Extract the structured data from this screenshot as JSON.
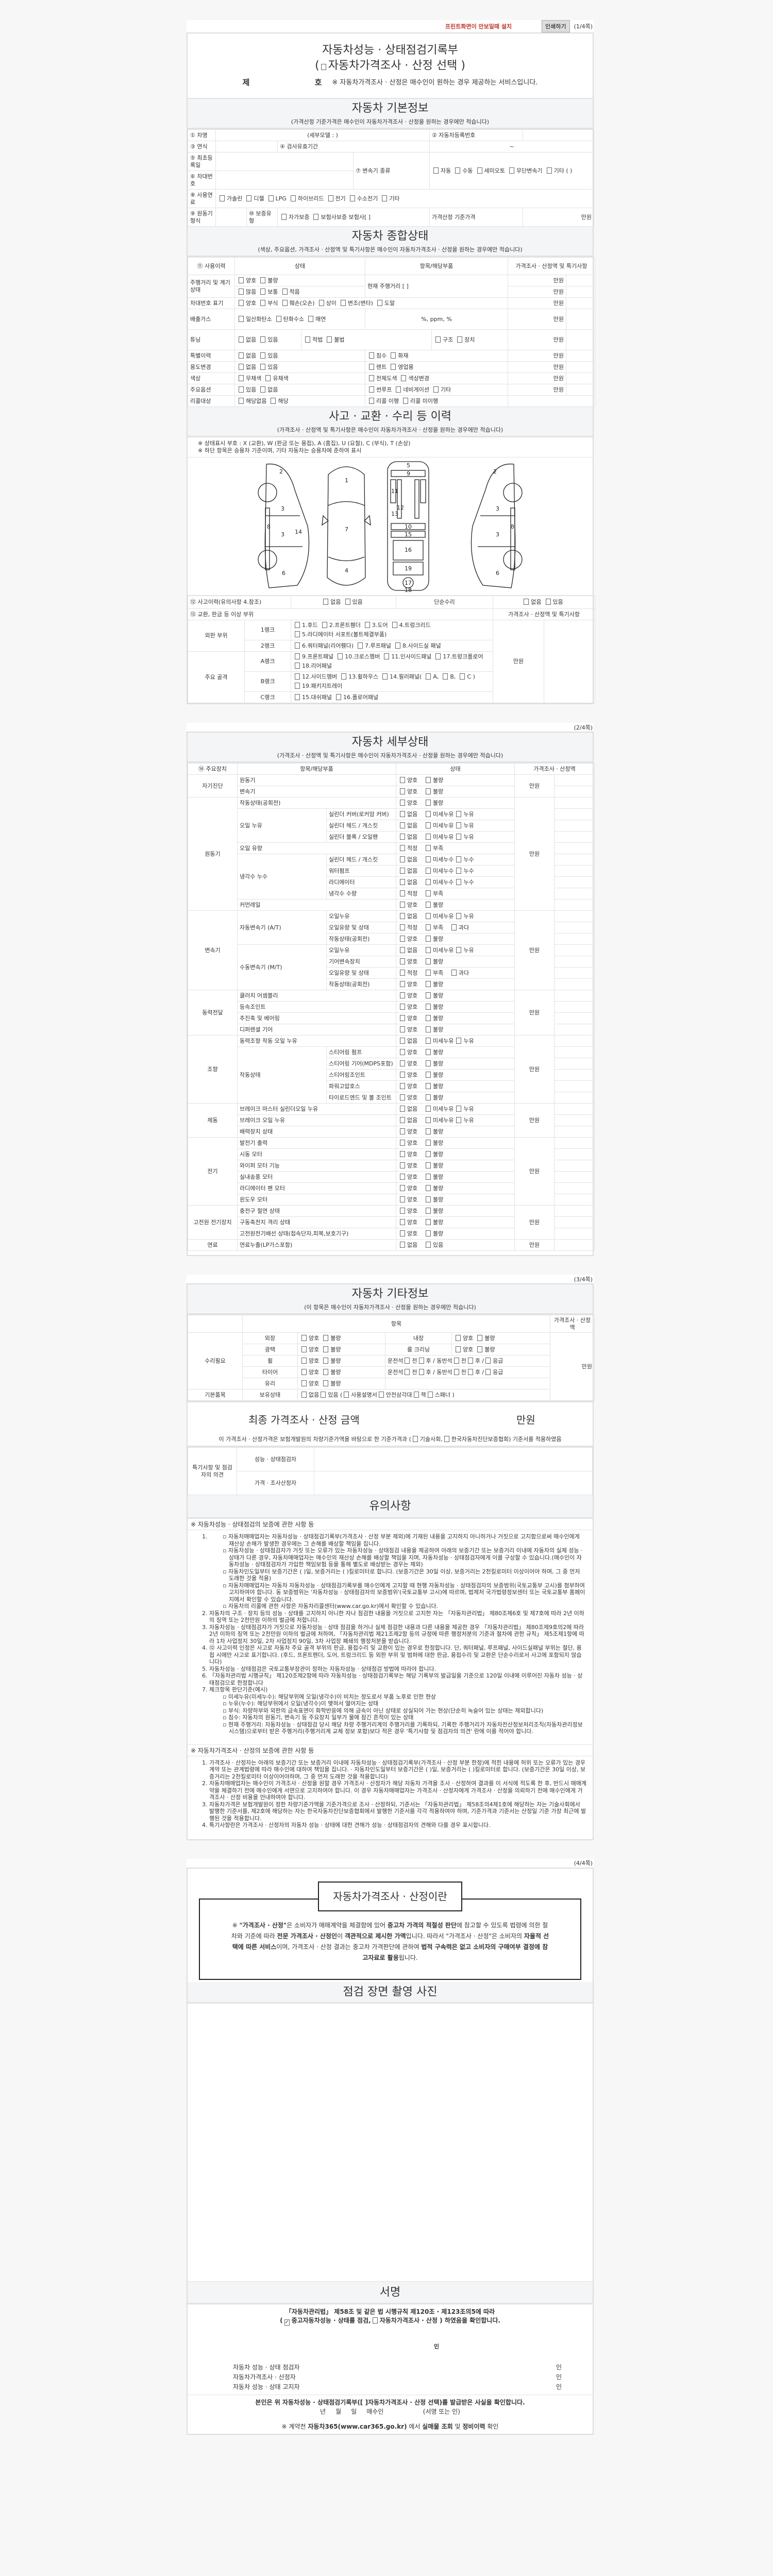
{
  "top": {
    "notice": "프린트화면이 안보일때 설치",
    "print_button": "인쇄하기",
    "page_label": "(1/4쪽)"
  },
  "title": {
    "line1": "자동차성능 · 상태점검기록부",
    "open": "(",
    "line2": "자동차가격조사 · 산정 선택",
    "close": ")",
    "number_prefix": "제",
    "number_suffix": "호",
    "note": "※ 자동차가격조사 · 산정은 매수인이 원하는 경우 제공하는 서비스입니다."
  },
  "option_sets": {
    "gb": [
      "양호",
      "불량"
    ],
    "leak_oil": [
      "없음",
      "미세누유",
      "누유"
    ],
    "leak_water": [
      "없음",
      "미세누수",
      "누수"
    ],
    "level": [
      "적정",
      "부족"
    ],
    "level3": [
      "적정",
      "부족",
      "과다"
    ],
    "yn": [
      "없음",
      "있음"
    ]
  },
  "basic": {
    "header": "자동차 기본정보",
    "sub": "(가격산정 기준가격은 매수인이 자동차가격조사 · 산정을 원하는 경우에만 적습니다)",
    "name_label": "① 차명",
    "detail_model": "(세부모델 :                    )",
    "reg_label": "② 자동차등록번호",
    "year_label": "③ 연식",
    "inspect_label": "④ 검사유효기간",
    "inspect_value": "~",
    "first_reg_label": "⑤ 최초등록일",
    "vin_label": "⑥ 차대번호",
    "transmission_label": "⑦ 변속기 종류",
    "transmission": [
      "자동",
      "수동",
      "세미오토",
      "무단변속기",
      "기타 (            )"
    ],
    "fuel_label": "⑧ 사용연료",
    "fuel": [
      "가솔린",
      "디젤",
      "LPG",
      "하이브리드",
      "전기",
      "수소전기",
      "기타"
    ],
    "engine_label": "⑨ 원동기형식",
    "warranty_label": "⑩ 보증유형",
    "warranty": [
      "자가보증",
      "보험사보증 보험사[          ]"
    ],
    "base_price_label": "가격산정 기준가격",
    "unit": "만원"
  },
  "summary": {
    "header": "자동차 종합상태",
    "sub": "(색상, 주요옵션, 가격조사 · 산정액 및 특기사항은 매수인이 자동차가격조사 · 산정을 원하는 경우에만 적습니다)",
    "col_history": "⑪ 사용이력",
    "col_status": "상태",
    "col_item": "항목/해당부품",
    "col_price": "가격조사 · 산정액 및 특기사항",
    "unit": "만원",
    "mileage_label": "주행거리 및 계기상태",
    "mileage_opts1": [
      "양호",
      "불량"
    ],
    "mileage_opts2": [
      "많음",
      "보통",
      "적음"
    ],
    "mileage_item": "현재 주행거리 [                    ]",
    "vin_label": "차대번호 표기",
    "vin_opts": [
      "양호",
      "부식",
      "훼손(오손)",
      "상이",
      "변조(변타)",
      "도말"
    ],
    "emission_label": "배출가스",
    "emission_opts": [
      "일산화탄소",
      "탄화수소",
      "매연"
    ],
    "emission_item": "%,        ppm,        %",
    "tuning_label": "튜닝",
    "tuning_opts": [
      "없음",
      "있음"
    ],
    "tuning_legal": [
      "적법",
      "불법"
    ],
    "tuning_kind": [
      "구조",
      "장치"
    ],
    "special_label": "특별이력",
    "special_opts": [
      "없음",
      "있음"
    ],
    "special_item": [
      "침수",
      "화재"
    ],
    "usage_label": "용도변경",
    "usage_opts": [
      "없음",
      "있음"
    ],
    "usage_item": [
      "렌트",
      "영업용"
    ],
    "color_label": "색상",
    "color_opts": [
      "무채색",
      "유채색"
    ],
    "color_item": [
      "전체도색",
      "색상변경"
    ],
    "option_label": "주요옵션",
    "option_opts": [
      "있음",
      "없음"
    ],
    "option_item": [
      "썬루프",
      "네비게이션",
      "기타"
    ],
    "recall_label": "리콜대상",
    "recall_opts": [
      "해당없음",
      "해당"
    ],
    "recall_item": [
      "리콜 이행",
      "리콜 미이행"
    ]
  },
  "accident": {
    "header": "사고 · 교환 · 수리 등 이력",
    "sub": "(가격조사 · 산정액 및 특기사항은 매수인이 자동차가격조사 · 산정을 원하는 경우에만 적습니다)",
    "note1": "※ 상태표시 부호 : X (교환), W (판금 또는 용접), A (흠집), U (요철), C (부식), T (손상)",
    "note2": "※ 하단 항목은 승용차 기준이며, 기타 자동차는 승용차에 준하여 표시",
    "diagram_labels": [
      "1",
      "2",
      "3",
      "4",
      "5",
      "6",
      "7",
      "8",
      "9",
      "10",
      "11",
      "12",
      "13",
      "14",
      "15",
      "16",
      "17",
      "18",
      "19"
    ],
    "history_label": "⑫ 사고이력(유의사항 4.참조)",
    "history_opts": [
      "없음",
      "있음"
    ],
    "simple_label": "단순수리",
    "simple_opts": [
      "없음",
      "있음"
    ],
    "parts_label": "⑬ 교환, 판금 등 이상 부위",
    "price_label": "가격조사 · 산정액 및 특기사항",
    "unit": "만원",
    "outer_label": "외판 부위",
    "frame_label": "주요 골격",
    "ranks": [
      {
        "rank": "1랭크",
        "parts": [
          "1.후드",
          "2.프론트휀더",
          "3.도어",
          "4.트렁크리드",
          "5.라디에이터 서포트(볼트체결부품)"
        ]
      },
      {
        "rank": "2랭크",
        "parts": [
          "6.쿼터패널(리어휀다)",
          "7.루프패널",
          "8.사이드실 패널"
        ]
      },
      {
        "rank": "A랭크",
        "parts": [
          "9.프론트패널",
          "10.크로스멤버",
          "11.인사이드패널",
          "17.트렁크플로어",
          "18.리어패널"
        ]
      },
      {
        "rank": "B랭크",
        "parts": [
          "12.사이드멤버",
          "13.휠하우스",
          "14.필러패널(",
          "A,",
          "B,",
          "C )",
          "19.패키지트레이"
        ]
      },
      {
        "rank": "C랭크",
        "parts": [
          "15.대쉬패널",
          "16.플로어패널"
        ]
      }
    ]
  },
  "detail": {
    "page_label": "(2/4쪽)",
    "header": "자동차 세부상태",
    "sub": "(가격조사 · 산정액 및 특기사항은 매수인이 자동차가격조사 · 산정을 원하는 경우에만 적습니다)",
    "col_device": "⑭ 주요장치",
    "col_item": "항목/해당부품",
    "col_status": "상태",
    "col_price": "가격조사 · 산정액",
    "unit": "만원",
    "groups": [
      {
        "name": "자기진단",
        "items": [
          {
            "label": "원동기",
            "o": "gb"
          },
          {
            "label": "변속기",
            "o": "gb"
          }
        ]
      },
      {
        "name": "원동기",
        "items": [
          {
            "label": "작동상태(공회전)",
            "o": "gb"
          },
          {
            "label": "오일 누유",
            "subs": [
              {
                "label": "실린더 커버(로커암 커버)",
                "o": "leak_oil"
              },
              {
                "label": "실린더 헤드 / 개스킷",
                "o": "leak_oil"
              },
              {
                "label": "실린더 블록 / 오일팬",
                "o": "leak_oil"
              }
            ]
          },
          {
            "label": "오일 유량",
            "o": "level"
          },
          {
            "label": "냉각수 누수",
            "subs": [
              {
                "label": "실린더 헤드 / 개스킷",
                "o": "leak_water"
              },
              {
                "label": "워터펌프",
                "o": "leak_water"
              },
              {
                "label": "라디에이터",
                "o": "leak_water"
              },
              {
                "label": "냉각수 수량",
                "o": "level"
              }
            ]
          },
          {
            "label": "커먼레일",
            "o": "gb"
          }
        ]
      },
      {
        "name": "변속기",
        "items": [
          {
            "label": "자동변속기 (A/T)",
            "subs": [
              {
                "label": "오일누유",
                "o": "leak_oil"
              },
              {
                "label": "오일유량 및 상태",
                "o": "level3"
              },
              {
                "label": "작동상태(공회전)",
                "o": "gb"
              }
            ]
          },
          {
            "label": "수동변속기 (M/T)",
            "subs": [
              {
                "label": "오일누유",
                "o": "leak_oil"
              },
              {
                "label": "기어변속장치",
                "o": "gb"
              },
              {
                "label": "오일유량 및 상태",
                "o": "level3"
              },
              {
                "label": "작동상태(공회전)",
                "o": "gb"
              }
            ]
          }
        ]
      },
      {
        "name": "동력전달",
        "items": [
          {
            "label": "클러치 어셈블리",
            "o": "gb"
          },
          {
            "label": "등속조인트",
            "o": "gb"
          },
          {
            "label": "추진축 및 베어링",
            "o": "gb"
          },
          {
            "label": "디퍼렌셜 기어",
            "o": "gb"
          }
        ]
      },
      {
        "name": "조향",
        "items": [
          {
            "label": "동력조향 작동 오일 누유",
            "o": "leak_oil"
          },
          {
            "label": "작동상태",
            "subs": [
              {
                "label": "스티어링 펌프",
                "o": "gb"
              },
              {
                "label": "스티어링 기어(MDPS포함)",
                "o": "gb"
              },
              {
                "label": "스티어링조인트",
                "o": "gb"
              },
              {
                "label": "파워고압호스",
                "o": "gb"
              },
              {
                "label": "타이로드엔드 및 볼 조인트",
                "o": "gb"
              }
            ]
          }
        ]
      },
      {
        "name": "제동",
        "items": [
          {
            "label": "브레이크 마스터 실린더오일 누유",
            "o": "leak_oil"
          },
          {
            "label": "브레이크 오일 누유",
            "o": "leak_oil"
          },
          {
            "label": "배력장치 상태",
            "o": "gb"
          }
        ]
      },
      {
        "name": "전기",
        "items": [
          {
            "label": "발전기 출력",
            "o": "gb"
          },
          {
            "label": "시동 모터",
            "o": "gb"
          },
          {
            "label": "와이퍼 모터 기능",
            "o": "gb"
          },
          {
            "label": "실내송풍 모터",
            "o": "gb"
          },
          {
            "label": "라디에이터 팬 모터",
            "o": "gb"
          },
          {
            "label": "윈도우 모터",
            "o": "gb"
          }
        ]
      },
      {
        "name": "고전원 전기장치",
        "items": [
          {
            "label": "충전구 절연 상태",
            "o": "gb"
          },
          {
            "label": "구동축전지 격리 상태",
            "o": "gb"
          },
          {
            "label": "고전원전기배선 상태(접속단자,피복,보호기구)",
            "o": "gb"
          }
        ]
      },
      {
        "name": "연료",
        "items": [
          {
            "label": "연료누출(LP가스포함)",
            "o": "yn"
          }
        ]
      }
    ]
  },
  "other": {
    "page_label": "(3/4쪽)",
    "header": "자동차 기타정보",
    "sub": "(이 항목은 매수인이 자동차가격조사 · 산정을 원하는 경우에만 적습니다)",
    "col_item": "항목",
    "col_price": "가격조사 · 산정액",
    "unit": "만원",
    "repair_label": "수리필요",
    "exterior": "외장",
    "interior": "내장",
    "gloss": "광택",
    "room": "룸 크리닝",
    "wheel": "휠",
    "tire": "타이어",
    "glass": "유리",
    "position": [
      {
        "label": "운전석"
      },
      {
        "check": true,
        "label": "전"
      },
      {
        "check": true,
        "label": "후 / 동반석"
      },
      {
        "check": true,
        "label": "전"
      },
      {
        "check": true,
        "label": "후 /"
      },
      {
        "check": true,
        "label": "응급"
      }
    ],
    "basic_items_label": "기본품목",
    "possession_label": "보유상태",
    "possession": [
      {
        "check": true,
        "label": "없음"
      },
      {
        "check": true,
        "label": "있음 ("
      },
      {
        "check": true,
        "label": "사용설명서"
      },
      {
        "check": true,
        "label": "안전삼각대"
      },
      {
        "check": true,
        "label": "잭"
      },
      {
        "check": true,
        "label": "스패너 )"
      }
    ],
    "final_label": "최종 가격조사 · 산정 금액",
    "final_unit": "만원",
    "basis": [
      {
        "label": "이 가격조사 · 산정가격은 보험개발원의 차량기준가액을 바탕으로 한 기준가격과 ("
      },
      {
        "check": true,
        "label": "기술사회,"
      },
      {
        "check": true,
        "label": "한국자동차진단보증협회) 기준서를 적용하였음"
      }
    ],
    "opinion_label": "특기사항 및 점검자의 의견",
    "inspector": "성능 · 상태점검자",
    "appraiser": "가격 · 조사산정자"
  },
  "notes": {
    "header": "유의사항",
    "sub1": "※ 자동차성능 · 상태점검의 보증에 관한 사항 등",
    "n1_bullets": [
      "자동차매매업자는 자동차성능 · 상태점검기록부(가격조사 · 산정 부분 제외)에 기재된 내용을 고지하지 아니하거나 거짓으로 고지함으로써 매수인에게 재산상 손해가 발생한 경우에는 그 손해를 배상할 책임을 집니다.",
      "자동차성능 · 상태점검자가 거짓 또는 오류가 있는 자동차성능 · 상태점검 내용을 제공하여 아래의 보증기간 또는 보증거리 이내에 자동차의 실제 성능 · 상태가 다른 경우, 자동차매매업자는 매수인의 재산상 손해를 배상할 책임을 지며, 자동차성능 · 상태점검자에게 이를 구상할 수 있습니다.(매수인이 자동차성능 · 상태점검자가 가입한 책임보험 등을 통해 별도로 배상받는 경우는 제외)",
      "자동차인도일부터 보증기간은 (      )일, 보증거리는 (      )킬로미터로 합니다. (보증기간은 30일 이상, 보증거리는 2천킬로미터 이상이어야 하며, 그 중 먼저 도래한 것을 적용)",
      "자동차매매업자는 자동차 자동차성능 · 상태점검기록부를 매수인에게 고지할 때 현행 자동차성능 · 상태점검자의 보증범위(국토교통부 고시)를 첨부하여 고지하여야 합니다. 동 보증범위는 '자동차성능 · 상태점검자의 보증범위'(국토교통부 고시)에 따르며, 법제처 국가법령정보센터 또는 국토교통부 홈페이지에서 확인할 수 있습니다.",
      "자동차의 리콜에 관한 사항은 자동차리콜센터(www.car.go.kr)에서 확인할 수 있습니다."
    ],
    "n2": "자동차의 구조 · 장치 등의 성능 · 상태를 고지하지 아니한 자나 점검한 내용을 거짓으로 고지한 자는 「자동차관리법」 제80조제6호 및 제7호에 따라 2년 이하의 징역 또는 2천만원 이하의 벌금에 처합니다.",
    "n3": "자동차성능 · 상태점검자가 거짓으로 자동차성능 · 상태 점검을 하거나 실제 점검한 내용과 다른 내용을 제공한 경우 「자동차관리법」 제80조제9호의2에 따라 2년 이하의 징역 또는 2천만원 이하의 벌금에 처하며, 「자동차관리법 제21조제2항 등의 규정에 따른 행정처분의 기준과 절차에 관한 규칙」 제5조제1항에 따라 1차 사업정지 30일, 2차 사업정지 90일, 3차 사업장 폐쇄의 행정처분을 받습니다.",
    "n4": "⑫ 사고이력 인정은 사고로 자동차 주요 골격 부위의 판금, 용접수리 및 교환이 있는 경우로 한정합니다. 단, 쿼터패널, 루프패널, 사이드실패널 부위는 절단, 용접 시에만 사고로 표기합니다. (후드, 프론트펜더, 도어, 트렁크리드 등 외판 부위 및 범퍼에 대한 판금, 용접수리 및 교환은 단순수리로서 사고에 포함되지 않습니다)",
    "n5": "자동차성능 · 상태점검은 국토교통부장관이 정하는 자동차성능 · 상태점검 방법에 따라야 합니다.",
    "n6": "「자동차관리법 시행규칙」 제120조제2항에 따라 자동차성능 · 상태점검기록부는 해당 기록부의 발급일을 기준으로 120일 이내에 이루어진 자동차 성능 · 상태점검으로 한정합니다",
    "n7": "체크항목 판단기준(예시)",
    "n7_bullets": [
      "미세누유(미세누수): 해당부위에 오일(냉각수)이 비치는 정도로서 부품 노후로 인한 현상",
      "누유(누수): 해당부위에서 오일(냉각수)이 맺혀서 떨어지는 상태",
      "부식: 차량하부와 외판의 금속표면이 화학반응에 의해 금속이 아닌 상태로 상실되어 가는 현상(단순히 녹슬어 있는 상태는 제외합니다)",
      "침수: 자동차의 원동기, 변속기 등 주요장치 일부가 물에 잠긴 흔적이 있는 상태",
      "현재 주행거리: 자동차성능 · 상태점검 당시 해당 차량 주행거리계의 주행거리를 기록하되, 기록한 주행거리가 자동차전산정보처리조직(자동차관리정보시스템)으로부터 받은 주행거리(주행거리계 교체 정보 포함)보다 적은 경우 '특기사항 및 점검자의 의견' 란에 이를 적어야 합니다."
    ],
    "sub2": "※ 자동차가격조사 · 산정의 보증에 관한 사항 등",
    "p1": "가격조사 · 산정자는 아래의 보증기간 또는 보증거리 이내에 자동차성능 · 상태점검기록부(가격조사 · 산정 부분 한정)에 적힌 내용에 허위 또는 오류가 있는 경우 계약 또는 관계법령에 따라 매수인에 대하여 책임을 집니다. · 자동차인도일부터 보증기간은 (      )일, 보증거리는 (      )킬로미터로 합니다. (보증기간은 30일 이상, 보증거리는 2천킬로미터 이상이어야하며, 그 중 먼저 도래한 것을 적용합니다)",
    "p2": "자동차매매업자는 매수인이 가격조사 · 산정을 원할 경우 가격조사 · 산정자가 해당 자동차 가격을 조사 · 산정하여 결과를 이 서식에 적도록 한 후, 반드시 매매계약을 체결하기 전에 매수인에게 서면으로 고지하여야 합니다. 이 경우 자동차매매업자는 가격조사 · 산정자에게 가격조사 · 산정을 의뢰하기 전에 매수인에게 가격조사 · 산정 비용을 안내하여야 합니다.",
    "p3": "자동차가격은 보험개발원이 정한 차량기준가액을 기준가격으로 조사 · 산정하되, 기준서는 「자동차관리법」 제58조의4제1호에 해당하는 자는 기술사회에서 발행한 기준서를, 제2호에 해당하는 자는 한국자동차진단보증협회에서 발행한 기준서를 각각 적용하여야 하며, 기준가격과 기준서는 산정일 기준 가장 최근에 발행된 것을 적용합니다.",
    "p4": "특기사항란은 가격조사 · 산정자의 자동차 성능 · 상태에 대한 견해가 성능 · 상태점검자의 견해와 다를 경우 표시합니다."
  },
  "last": {
    "page_label": "(4/4쪽)",
    "frame_title": "자동차가격조사 · 산정이란",
    "frame_text": [
      {
        "t": "※ ",
        "b": false
      },
      {
        "t": "\"가격조사 · 산정\"",
        "b": true
      },
      {
        "t": "은 소비자가 매매계약을 체결함에 있어 ",
        "b": false
      },
      {
        "t": "중고차 가격의 적절성 판단",
        "b": true
      },
      {
        "t": "에 참고할 수 있도록 법령에 의한 절차와 기준에 따라 ",
        "b": false
      },
      {
        "t": "전문 가격조사 · 산정인",
        "b": true
      },
      {
        "t": "이 ",
        "b": false
      },
      {
        "t": "객관적으로 제시한 가액",
        "b": true
      },
      {
        "t": "입니다. 따라서 \"가격조사 · 산정\"은 소비자의 ",
        "b": false
      },
      {
        "t": "자율적 선택에 따른 서비스",
        "b": true
      },
      {
        "t": "이며, 가격조사 · 산정 결과는 중고차 가격판단에 관하여 ",
        "b": false
      },
      {
        "t": "법적 구속력은 없고 소비자의 구매여부 결정에 참고자료로 활용",
        "b": true
      },
      {
        "t": "됩니다.",
        "b": false
      }
    ],
    "photo_header": "점검 장면 촬영 사진",
    "sign_header": "서명",
    "law_line": "「자동차관리법」 제58조 및 같은 법 시행규칙 제120조 · 제123조의5에 따라",
    "confirm": [
      {
        "label": "("
      },
      {
        "check": true,
        "checked": true,
        "label": "중고자동차성능 · 상태를 점검,"
      },
      {
        "check": true,
        "label": "자동차가격조사 · 산정 ) 하였음을 확인합니다."
      }
    ],
    "seal": "인",
    "signers": [
      {
        "role": "자동차 성능 · 상태 점검자",
        "seal": "인"
      },
      {
        "role": "자동차가격조사 · 산정자",
        "seal": "인"
      },
      {
        "role": "자동차 성능 · 상태 고지자",
        "seal": "인"
      }
    ],
    "receipt": "본인은 위 자동차성능 · 상태점검기록부([   ]자동차가격조사 · 산정 선택)를 발급받은 사실을 확인합니다.",
    "date_line": "년     월     일     매수인                    (서명 또는 인)",
    "car365": [
      {
        "t": "※ 계약전 ",
        "b": false
      },
      {
        "t": "자동차365(www.car365.go.kr)",
        "b": true
      },
      {
        "t": " 에서 ",
        "b": false
      },
      {
        "t": "실매물 조회",
        "b": true
      },
      {
        "t": " 및 ",
        "b": false
      },
      {
        "t": "정비이력",
        "b": true
      },
      {
        "t": " 확인",
        "b": false
      }
    ]
  }
}
